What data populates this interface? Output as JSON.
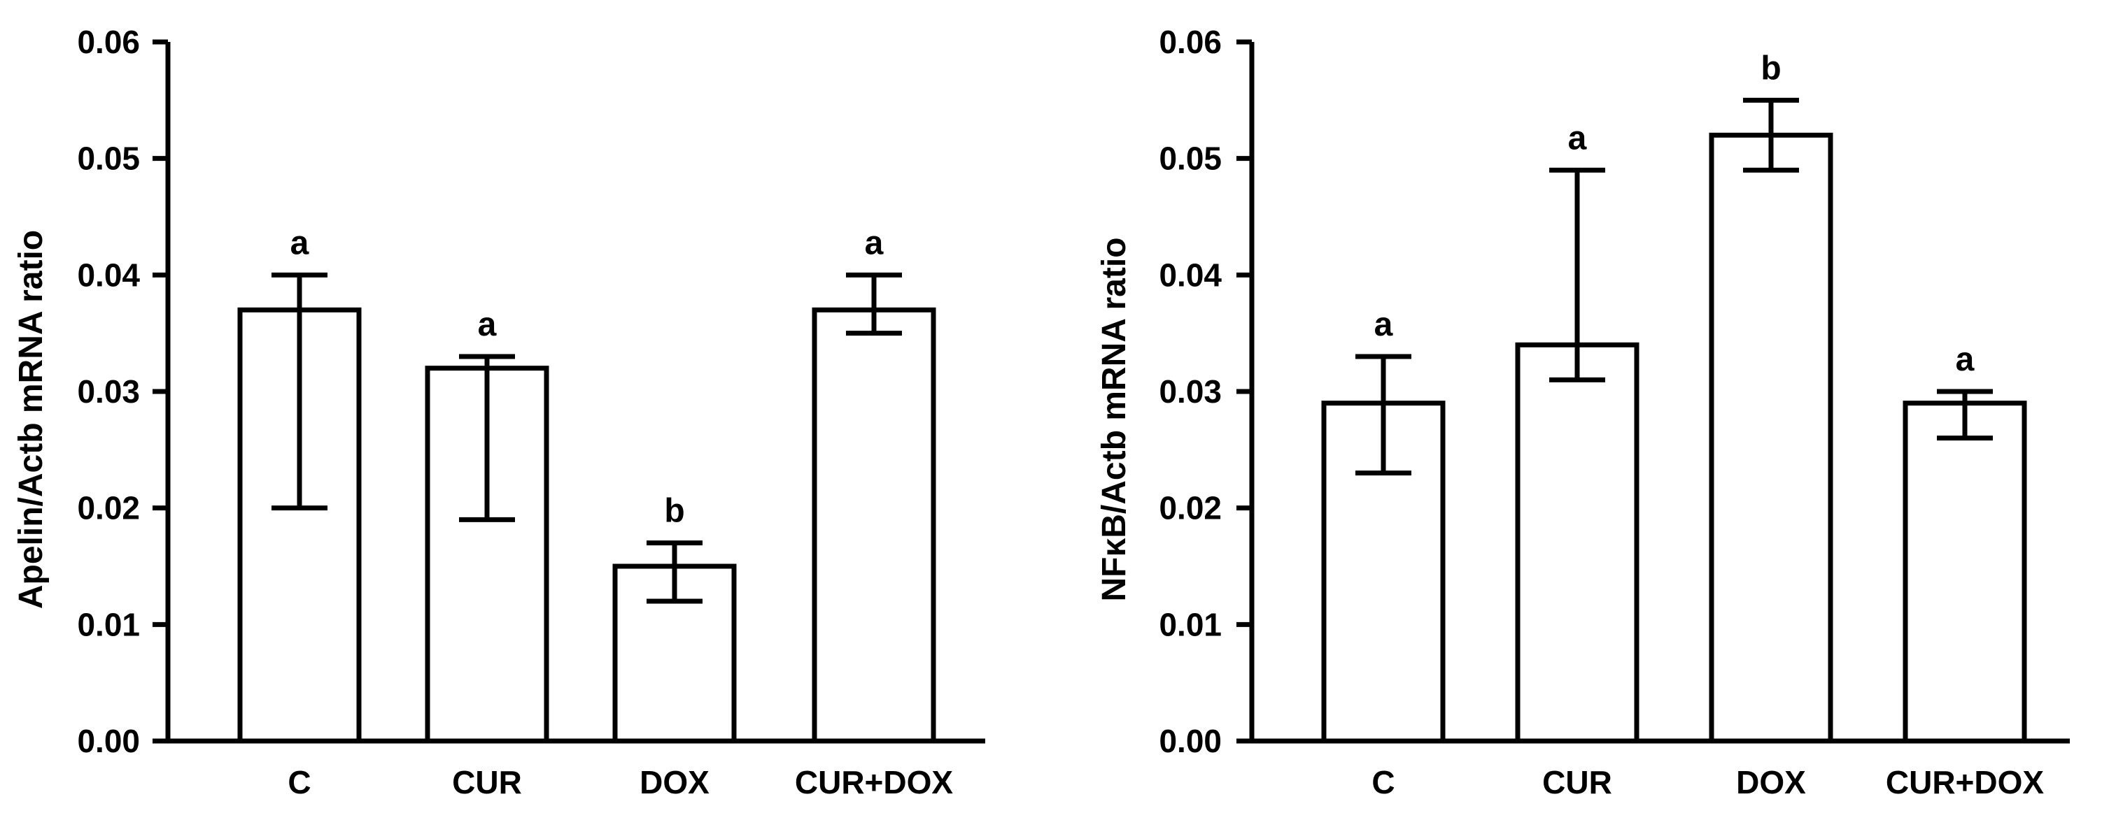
{
  "chart_data": [
    {
      "type": "bar",
      "categories": [
        "C",
        "CUR",
        "DOX",
        "CUR+DOX"
      ],
      "values": [
        0.037,
        0.032,
        0.015,
        0.037
      ],
      "error_bars": [
        {
          "low": 0.02,
          "high": 0.04
        },
        {
          "low": 0.019,
          "high": 0.033
        },
        {
          "low": 0.012,
          "high": 0.017
        },
        {
          "low": 0.035,
          "high": 0.04
        }
      ],
      "significance": [
        "a",
        "a",
        "b",
        "a"
      ],
      "ylabel": "Apelin/Actb mRNA ratio",
      "ylim": [
        0,
        0.06
      ],
      "yticks": [
        "0.00",
        "0.01",
        "0.02",
        "0.03",
        "0.04",
        "0.05",
        "0.06"
      ],
      "grid": false,
      "bar_fill": "#ffffff",
      "bar_stroke": "#000000"
    },
    {
      "type": "bar",
      "categories": [
        "C",
        "CUR",
        "DOX",
        "CUR+DOX"
      ],
      "values": [
        0.029,
        0.034,
        0.052,
        0.029
      ],
      "error_bars": [
        {
          "low": 0.023,
          "high": 0.033
        },
        {
          "low": 0.031,
          "high": 0.049
        },
        {
          "low": 0.049,
          "high": 0.055
        },
        {
          "low": 0.026,
          "high": 0.03
        }
      ],
      "significance": [
        "a",
        "a",
        "b",
        "a"
      ],
      "ylabel": "NFκB/Actb mRNA ratio",
      "ylim": [
        0,
        0.06
      ],
      "yticks": [
        "0.00",
        "0.01",
        "0.02",
        "0.03",
        "0.04",
        "0.05",
        "0.06"
      ],
      "grid": false,
      "bar_fill": "#ffffff",
      "bar_stroke": "#000000"
    }
  ]
}
